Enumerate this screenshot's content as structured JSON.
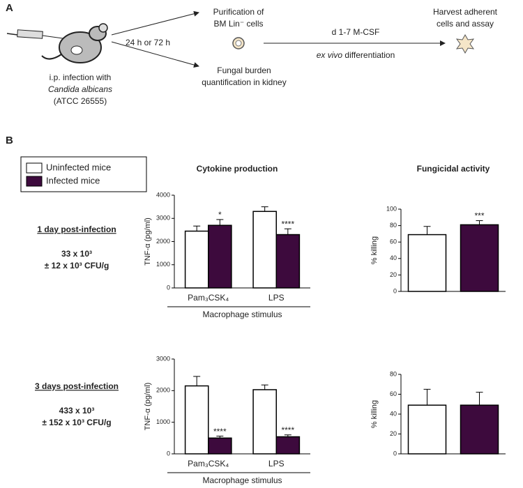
{
  "panel_a": {
    "label": "A",
    "infection": [
      "i.p. infection with",
      "Candida albicans",
      "(ATCC 26555)"
    ],
    "timing": "24 h or 72 h",
    "purification": [
      "Purification of",
      "BM Lin⁻ cells"
    ],
    "burden": [
      "Fungal burden",
      "quantification in kidney"
    ],
    "culture": "d 1-7 M-CSF",
    "differentiation_italic": "ex vivo",
    "differentiation": " differentiation",
    "harvest": [
      "Harvest adherent",
      "cells and assay"
    ]
  },
  "panel_b": {
    "label": "B",
    "rows": [
      {
        "title": "1 day post-infection",
        "burden": [
          "33 x 10³",
          "± 12 x 10³ CFU/g"
        ]
      },
      {
        "title": "3 days post-infection",
        "burden": [
          "433 x 10³",
          "± 152 x 10³ CFU/g"
        ]
      }
    ]
  },
  "chart_data": [
    {
      "type": "bar",
      "title": "Cytokine production",
      "ylabel": "TNF-α (pg/ml)",
      "xlabel": "Macrophage stimulus",
      "categories": [
        "Pam₃CSK₄",
        "LPS"
      ],
      "ylim": [
        0,
        4000
      ],
      "yticks": [
        0,
        1000,
        2000,
        3000,
        4000
      ],
      "series": [
        {
          "name": "Uninfected mice",
          "color": "#ffffff",
          "values": [
            2450,
            3300
          ],
          "errors": [
            220,
            200
          ],
          "annotations": [
            null,
            null
          ]
        },
        {
          "name": "Infected mice",
          "color": "#3d0a3d",
          "values": [
            2700,
            2300
          ],
          "errors": [
            250,
            250
          ],
          "annotations": [
            "*",
            "****"
          ]
        }
      ]
    },
    {
      "type": "bar",
      "title": "Fungicidal activity",
      "ylabel": "% killing",
      "ylim": [
        0,
        100
      ],
      "yticks": [
        0,
        20,
        40,
        60,
        80,
        100
      ],
      "series": [
        {
          "color": "#ffffff",
          "values": [
            69
          ],
          "errors": [
            10
          ],
          "annotations": [
            null
          ]
        },
        {
          "color": "#3d0a3d",
          "values": [
            81
          ],
          "errors": [
            5
          ],
          "annotations": [
            "***"
          ]
        }
      ]
    },
    {
      "type": "bar",
      "ylabel": "TNF-α (pg/ml)",
      "xlabel": "Macrophage stimulus",
      "categories": [
        "Pam₃CSK₄",
        "LPS"
      ],
      "ylim": [
        0,
        3000
      ],
      "yticks": [
        0,
        1000,
        2000,
        3000
      ],
      "series": [
        {
          "color": "#ffffff",
          "values": [
            2150,
            2030
          ],
          "errors": [
            300,
            150
          ],
          "annotations": [
            null,
            null
          ]
        },
        {
          "color": "#3d0a3d",
          "values": [
            500,
            540
          ],
          "errors": [
            60,
            60
          ],
          "annotations": [
            "****",
            "****"
          ]
        }
      ]
    },
    {
      "type": "bar",
      "ylabel": "% killing",
      "ylim": [
        0,
        80
      ],
      "yticks": [
        0,
        20,
        40,
        60,
        80
      ],
      "series": [
        {
          "color": "#ffffff",
          "values": [
            49
          ],
          "errors": [
            16
          ],
          "annotations": [
            null
          ]
        },
        {
          "color": "#3d0a3d",
          "values": [
            49
          ],
          "errors": [
            13
          ],
          "annotations": [
            null
          ]
        }
      ]
    }
  ]
}
